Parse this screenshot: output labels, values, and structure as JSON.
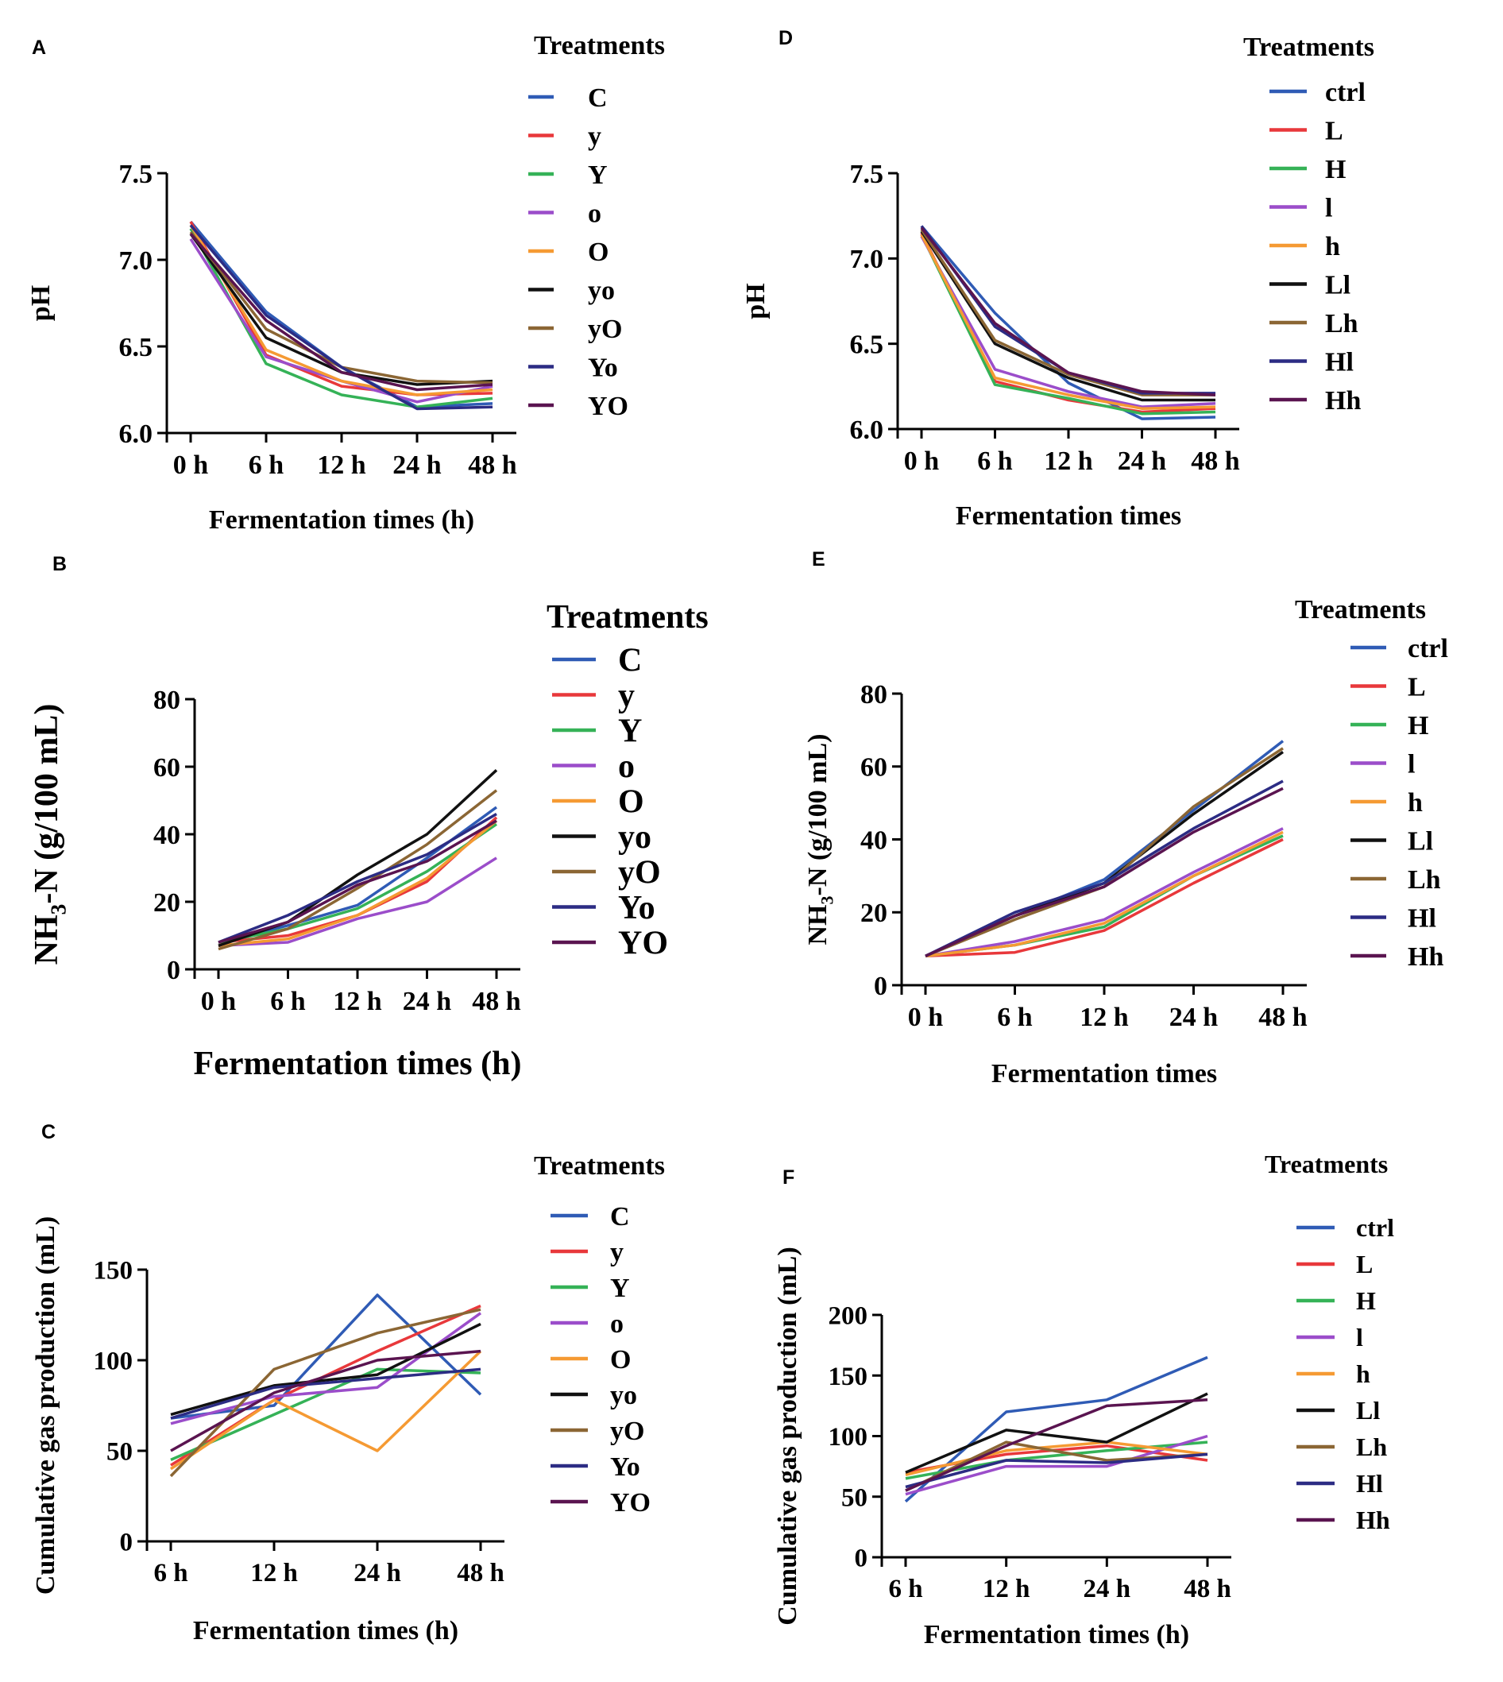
{
  "colors": [
    "#2f5bb5",
    "#e8383b",
    "#35b257",
    "#9b4dca",
    "#f59a33",
    "#111111",
    "#8b6634",
    "#2c2c84",
    "#5a1450"
  ],
  "chart_data": [
    {
      "panel": "A",
      "type": "line",
      "title": "",
      "xlabel": "Fermentation times (h)",
      "ylabel": "pH",
      "categories": [
        "0 h",
        "6 h",
        "12 h",
        "24 h",
        "48 h"
      ],
      "ylim": [
        6.0,
        7.5
      ],
      "yticks": [
        "6.0",
        "6.5",
        "7.0",
        "7.5"
      ],
      "legend_title": "Treatments",
      "series": [
        {
          "name": "C",
          "values": [
            7.22,
            6.7,
            6.38,
            6.15,
            6.17
          ]
        },
        {
          "name": "y",
          "values": [
            7.22,
            6.45,
            6.27,
            6.22,
            6.23
          ]
        },
        {
          "name": "Y",
          "values": [
            7.18,
            6.4,
            6.22,
            6.15,
            6.2
          ]
        },
        {
          "name": "o",
          "values": [
            7.12,
            6.44,
            6.3,
            6.18,
            6.27
          ]
        },
        {
          "name": "O",
          "values": [
            7.2,
            6.48,
            6.3,
            6.22,
            6.25
          ]
        },
        {
          "name": "yo",
          "values": [
            7.15,
            6.55,
            6.35,
            6.28,
            6.3
          ]
        },
        {
          "name": "yO",
          "values": [
            7.16,
            6.6,
            6.38,
            6.3,
            6.29
          ]
        },
        {
          "name": "Yo",
          "values": [
            7.2,
            6.68,
            6.38,
            6.14,
            6.15
          ]
        },
        {
          "name": "YO",
          "values": [
            7.15,
            6.65,
            6.35,
            6.25,
            6.28
          ]
        }
      ]
    },
    {
      "panel": "B",
      "type": "line",
      "title": "",
      "xlabel": "Fermentation times (h)",
      "ylabel": "NH3-N (g/100 mL)",
      "categories": [
        "0 h",
        "6 h",
        "12 h",
        "24 h",
        "48 h"
      ],
      "ylim": [
        0,
        80
      ],
      "yticks": [
        "0",
        "20",
        "40",
        "60",
        "80"
      ],
      "legend_title": "Treatments",
      "series": [
        {
          "name": "C",
          "values": [
            8,
            13,
            19,
            33,
            48
          ]
        },
        {
          "name": "y",
          "values": [
            8,
            10,
            16,
            26,
            45
          ]
        },
        {
          "name": "Y",
          "values": [
            8,
            12,
            18,
            29,
            43
          ]
        },
        {
          "name": "o",
          "values": [
            7,
            8,
            15,
            20,
            33
          ]
        },
        {
          "name": "O",
          "values": [
            7,
            9,
            16,
            27,
            44
          ]
        },
        {
          "name": "yo",
          "values": [
            7,
            14,
            28,
            40,
            59
          ]
        },
        {
          "name": "yO",
          "values": [
            6,
            12,
            24,
            37,
            53
          ]
        },
        {
          "name": "Yo",
          "values": [
            8,
            16,
            26,
            34,
            46
          ]
        },
        {
          "name": "YO",
          "values": [
            8,
            14,
            25,
            32,
            44
          ]
        }
      ]
    },
    {
      "panel": "C",
      "type": "line",
      "title": "",
      "xlabel": "Fermentation times (h)",
      "ylabel": "Cumulative gas production (mL)",
      "categories": [
        "6 h",
        "12 h",
        "24 h",
        "48 h"
      ],
      "ylim": [
        0,
        150
      ],
      "yticks": [
        "0",
        "50",
        "100",
        "150"
      ],
      "legend_title": "Treatments",
      "series": [
        {
          "name": "C",
          "values": [
            68,
            75,
            136,
            81
          ]
        },
        {
          "name": "y",
          "values": [
            42,
            78,
            105,
            130
          ]
        },
        {
          "name": "Y",
          "values": [
            45,
            70,
            95,
            93
          ]
        },
        {
          "name": "o",
          "values": [
            65,
            80,
            85,
            126
          ]
        },
        {
          "name": "O",
          "values": [
            40,
            78,
            50,
            105
          ]
        },
        {
          "name": "yo",
          "values": [
            70,
            86,
            92,
            120
          ]
        },
        {
          "name": "yO",
          "values": [
            36,
            95,
            115,
            128
          ]
        },
        {
          "name": "Yo",
          "values": [
            68,
            85,
            90,
            95
          ]
        },
        {
          "name": "YO",
          "values": [
            50,
            82,
            100,
            105
          ]
        }
      ]
    },
    {
      "panel": "D",
      "type": "line",
      "title": "",
      "xlabel": "Fermentation times",
      "ylabel": "pH",
      "categories": [
        "0 h",
        "6 h",
        "12 h",
        "24 h",
        "48 h"
      ],
      "ylim": [
        6.0,
        7.5
      ],
      "yticks": [
        "6.0",
        "6.5",
        "7.0",
        "7.5"
      ],
      "legend_title": "Treatments",
      "series": [
        {
          "name": "ctrl",
          "values": [
            7.19,
            6.68,
            6.27,
            6.06,
            6.07
          ]
        },
        {
          "name": "L",
          "values": [
            7.15,
            6.28,
            6.17,
            6.1,
            6.12
          ]
        },
        {
          "name": "H",
          "values": [
            7.14,
            6.26,
            6.18,
            6.09,
            6.1
          ]
        },
        {
          "name": "l",
          "values": [
            7.13,
            6.35,
            6.22,
            6.13,
            6.15
          ]
        },
        {
          "name": "h",
          "values": [
            7.14,
            6.3,
            6.2,
            6.12,
            6.13
          ]
        },
        {
          "name": "Ll",
          "values": [
            7.16,
            6.5,
            6.3,
            6.17,
            6.17
          ]
        },
        {
          "name": "Lh",
          "values": [
            7.17,
            6.52,
            6.32,
            6.2,
            6.2
          ]
        },
        {
          "name": "Hl",
          "values": [
            7.19,
            6.6,
            6.33,
            6.21,
            6.21
          ]
        },
        {
          "name": "Hh",
          "values": [
            7.18,
            6.62,
            6.33,
            6.22,
            6.2
          ]
        }
      ]
    },
    {
      "panel": "E",
      "type": "line",
      "title": "",
      "xlabel": "Fermentation times",
      "ylabel": "NH3-N (g/100 mL)",
      "categories": [
        "0 h",
        "6 h",
        "12 h",
        "24 h",
        "48 h"
      ],
      "ylim": [
        0,
        80
      ],
      "yticks": [
        "0",
        "20",
        "40",
        "60",
        "80"
      ],
      "legend_title": "Treatments",
      "series": [
        {
          "name": "ctrl",
          "values": [
            8,
            19,
            29,
            48,
            67
          ]
        },
        {
          "name": "L",
          "values": [
            8,
            9,
            15,
            28,
            40
          ]
        },
        {
          "name": "H",
          "values": [
            8,
            11,
            16,
            30,
            41
          ]
        },
        {
          "name": "l",
          "values": [
            8,
            12,
            18,
            31,
            43
          ]
        },
        {
          "name": "h",
          "values": [
            8,
            11,
            17,
            30,
            42
          ]
        },
        {
          "name": "Ll",
          "values": [
            8,
            19,
            28,
            47,
            64
          ]
        },
        {
          "name": "Lh",
          "values": [
            8,
            18,
            27,
            49,
            65
          ]
        },
        {
          "name": "Hl",
          "values": [
            8,
            20,
            28,
            43,
            56
          ]
        },
        {
          "name": "Hh",
          "values": [
            8,
            19,
            27,
            42,
            54
          ]
        }
      ]
    },
    {
      "panel": "F",
      "type": "line",
      "title": "",
      "xlabel": "Fermentation times (h)",
      "ylabel": "Cumulative gas production (mL)",
      "categories": [
        "6 h",
        "12 h",
        "24 h",
        "48 h"
      ],
      "ylim": [
        0,
        200
      ],
      "yticks": [
        "0",
        "50",
        "100",
        "150",
        "200"
      ],
      "legend_title": "Treatments",
      "series": [
        {
          "name": "ctrl",
          "values": [
            46,
            120,
            130,
            165
          ]
        },
        {
          "name": "L",
          "values": [
            70,
            85,
            92,
            80
          ]
        },
        {
          "name": "H",
          "values": [
            65,
            80,
            88,
            95
          ]
        },
        {
          "name": "l",
          "values": [
            52,
            75,
            75,
            100
          ]
        },
        {
          "name": "h",
          "values": [
            68,
            88,
            95,
            85
          ]
        },
        {
          "name": "Ll",
          "values": [
            70,
            105,
            95,
            135
          ]
        },
        {
          "name": "Lh",
          "values": [
            55,
            95,
            80,
            85
          ]
        },
        {
          "name": "Hl",
          "values": [
            58,
            80,
            78,
            85
          ]
        },
        {
          "name": "Hh",
          "values": [
            55,
            92,
            125,
            130
          ]
        }
      ]
    }
  ]
}
